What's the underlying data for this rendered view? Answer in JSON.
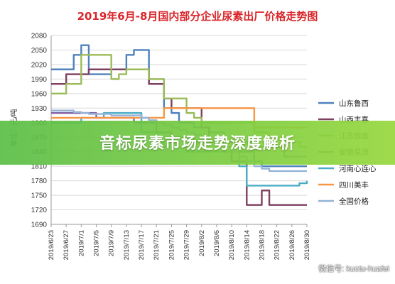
{
  "chart_data": {
    "type": "line",
    "title": "2019年6月-8月国内部分企业尿素出厂价格走势图",
    "ylabel": "单位：元/吨",
    "ylim": [
      1690,
      2080
    ],
    "yticks": [
      1690,
      1720,
      1750,
      1780,
      1810,
      1840,
      1870,
      1900,
      1930,
      1960,
      1990,
      2020,
      2050,
      2080
    ],
    "x": [
      "2019/6/23",
      "2019/6/25",
      "2019/6/27",
      "2019/6/29",
      "2019/7/1",
      "2019/7/3",
      "2019/7/5",
      "2019/7/7",
      "2019/7/9",
      "2019/7/11",
      "2019/7/13",
      "2019/7/15",
      "2019/7/17",
      "2019/7/19",
      "2019/7/21",
      "2019/7/23",
      "2019/7/25",
      "2019/7/27",
      "2019/7/29",
      "2019/7/31",
      "2019/8/2",
      "2019/8/4",
      "2019/8/6",
      "2019/8/8",
      "2019/8/10",
      "2019/8/12",
      "2019/8/14",
      "2019/8/16",
      "2019/8/18",
      "2019/8/20",
      "2019/8/22",
      "2019/8/24",
      "2019/8/26",
      "2019/8/28",
      "2019/8/30"
    ],
    "xtick_labels": [
      "2019/6/23",
      "2019/6/27",
      "2019/7/1",
      "2019/7/5",
      "2019/7/9",
      "2019/7/13",
      "2019/7/17",
      "2019/7/21",
      "2019/7/25",
      "2019/7/29",
      "2019/8/2",
      "2019/8/6",
      "2019/8/10",
      "2019/8/14",
      "2019/8/18",
      "2019/8/22",
      "2019/8/26",
      "2019/8/30"
    ],
    "series": [
      {
        "name": "山东鲁西",
        "color": "#4f81bd",
        "values": [
          2010,
          2010,
          2010,
          2040,
          2060,
          2000,
          2000,
          2000,
          2010,
          2010,
          2040,
          2050,
          2050,
          1980,
          1980,
          1930,
          1920,
          1900,
          1900,
          1890,
          1890,
          1880,
          1880,
          1860,
          1860,
          1840,
          1840,
          1820,
          1810,
          1810,
          1810,
          1810,
          1810,
          1810,
          1810
        ]
      },
      {
        "name": "山西丰喜",
        "color": "#7f3f5f",
        "values": [
          1980,
          1980,
          2000,
          2000,
          2000,
          2010,
          2010,
          2010,
          2010,
          2010,
          2010,
          2010,
          2010,
          1980,
          1980,
          1950,
          1930,
          1930,
          1930,
          1930,
          1890,
          1860,
          1860,
          1840,
          1820,
          1820,
          1730,
          1730,
          1760,
          1730,
          1730,
          1730,
          1730,
          1730,
          1730
        ]
      },
      {
        "name": "江苏恒盛",
        "color": "#9bbb59",
        "values": [
          1960,
          1960,
          1980,
          1980,
          2040,
          2040,
          2040,
          2040,
          1990,
          2000,
          2010,
          2010,
          2010,
          1990,
          1990,
          1950,
          1950,
          1950,
          1920,
          1910,
          1900,
          1900,
          1900,
          1900,
          1900,
          1900,
          1900,
          1880,
          1880,
          1870,
          1870,
          1860,
          1860,
          1850,
          1850
        ]
      },
      {
        "name": "安徽昊源",
        "color": "#8064a2",
        "values": [
          1920,
          1920,
          1920,
          1920,
          1920,
          1920,
          1910,
          1910,
          1910,
          1910,
          1910,
          1900,
          1900,
          1900,
          1880,
          1880,
          1870,
          1870,
          1870,
          1860,
          1860,
          1860,
          1860,
          1860,
          1860,
          1860,
          1860,
          1850,
          1850,
          1850,
          1850,
          1830,
          1830,
          1830,
          1830
        ]
      },
      {
        "name": "河南心连心",
        "color": "#4bacc6",
        "values": [
          1900,
          1900,
          1900,
          1900,
          1910,
          1910,
          1910,
          1920,
          1920,
          1920,
          1920,
          1920,
          1880,
          1880,
          1860,
          1850,
          1850,
          1850,
          1840,
          1840,
          1840,
          1840,
          1840,
          1840,
          1840,
          1810,
          1770,
          1770,
          1770,
          1770,
          1770,
          1770,
          1770,
          1775,
          1780
        ]
      },
      {
        "name": "四川美丰",
        "color": "#f79646",
        "values": [
          1910,
          1910,
          1910,
          1910,
          1910,
          1910,
          1910,
          1910,
          1910,
          1910,
          1910,
          1910,
          1910,
          1910,
          1910,
          1930,
          1930,
          1930,
          1930,
          1930,
          1930,
          1930,
          1930,
          1930,
          1930,
          1930,
          1930,
          1890,
          1890,
          1890,
          1890,
          1890,
          1890,
          1890,
          1890
        ]
      },
      {
        "name": "全国价格",
        "color": "#95b3d7",
        "values": [
          1925,
          1925,
          1925,
          1922,
          1920,
          1918,
          1918,
          1918,
          1915,
          1915,
          1915,
          1915,
          1910,
          1905,
          1900,
          1895,
          1890,
          1885,
          1880,
          1875,
          1870,
          1865,
          1860,
          1850,
          1840,
          1830,
          1820,
          1810,
          1805,
          1800,
          1800,
          1800,
          1800,
          1800,
          1800
        ]
      }
    ],
    "grid": "horizontal",
    "legend_position": "right"
  },
  "banner": {
    "text": "音标尿素市场走势深度解析"
  },
  "watermark": {
    "text": "微信号: kuotu-huafei"
  }
}
